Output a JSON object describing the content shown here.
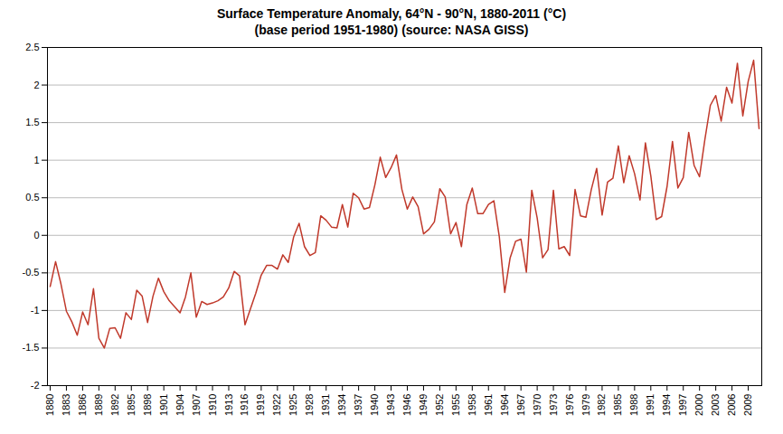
{
  "chart_data": {
    "type": "line",
    "title": "Surface Temperature Anomaly, 64°N - 90°N, 1880-2011 (°C)",
    "subtitle": "(base period 1951-1980) (source: NASA GISS)",
    "x": [
      1880,
      1881,
      1882,
      1883,
      1884,
      1885,
      1886,
      1887,
      1888,
      1889,
      1890,
      1891,
      1892,
      1893,
      1894,
      1895,
      1896,
      1897,
      1898,
      1899,
      1900,
      1901,
      1902,
      1903,
      1904,
      1905,
      1906,
      1907,
      1908,
      1909,
      1910,
      1911,
      1912,
      1913,
      1914,
      1915,
      1916,
      1917,
      1918,
      1919,
      1920,
      1921,
      1922,
      1923,
      1924,
      1925,
      1926,
      1927,
      1928,
      1929,
      1930,
      1931,
      1932,
      1933,
      1934,
      1935,
      1936,
      1937,
      1938,
      1939,
      1940,
      1941,
      1942,
      1943,
      1944,
      1945,
      1946,
      1947,
      1948,
      1949,
      1950,
      1951,
      1952,
      1953,
      1954,
      1955,
      1956,
      1957,
      1958,
      1959,
      1960,
      1961,
      1962,
      1963,
      1964,
      1965,
      1966,
      1967,
      1968,
      1969,
      1970,
      1971,
      1972,
      1973,
      1974,
      1975,
      1976,
      1977,
      1978,
      1979,
      1980,
      1981,
      1982,
      1983,
      1984,
      1985,
      1986,
      1987,
      1988,
      1989,
      1990,
      1991,
      1992,
      1993,
      1994,
      1995,
      1996,
      1997,
      1998,
      1999,
      2000,
      2001,
      2002,
      2003,
      2004,
      2005,
      2006,
      2007,
      2008,
      2009,
      2010,
      2011
    ],
    "values": [
      -0.68,
      -0.35,
      -0.65,
      -1.01,
      -1.15,
      -1.33,
      -1.02,
      -1.19,
      -0.71,
      -1.37,
      -1.5,
      -1.24,
      -1.23,
      -1.37,
      -1.03,
      -1.12,
      -0.73,
      -0.81,
      -1.16,
      -0.81,
      -0.57,
      -0.75,
      -0.87,
      -0.95,
      -1.03,
      -0.82,
      -0.5,
      -1.09,
      -0.88,
      -0.92,
      -0.9,
      -0.87,
      -0.82,
      -0.7,
      -0.48,
      -0.54,
      -1.19,
      -0.98,
      -0.77,
      -0.53,
      -0.4,
      -0.4,
      -0.45,
      -0.26,
      -0.36,
      -0.02,
      0.16,
      -0.15,
      -0.27,
      -0.23,
      0.26,
      0.2,
      0.11,
      0.1,
      0.41,
      0.11,
      0.56,
      0.5,
      0.35,
      0.37,
      0.67,
      1.04,
      0.77,
      0.9,
      1.07,
      0.61,
      0.35,
      0.51,
      0.38,
      0.02,
      0.08,
      0.18,
      0.62,
      0.51,
      0.02,
      0.17,
      -0.15,
      0.41,
      0.63,
      0.29,
      0.29,
      0.41,
      0.46,
      -0.02,
      -0.76,
      -0.3,
      -0.08,
      -0.05,
      -0.49,
      0.6,
      0.23,
      -0.3,
      -0.19,
      0.6,
      -0.18,
      -0.15,
      -0.27,
      0.61,
      0.26,
      0.24,
      0.61,
      0.89,
      0.27,
      0.71,
      0.76,
      1.19,
      0.7,
      1.06,
      0.82,
      0.47,
      1.23,
      0.79,
      0.21,
      0.25,
      0.65,
      1.25,
      0.63,
      0.77,
      1.37,
      0.93,
      0.78,
      1.28,
      1.73,
      1.86,
      1.52,
      1.97,
      1.76,
      2.29,
      1.59,
      2.05,
      2.33,
      1.42
    ],
    "color": "#c0392b",
    "xlim": [
      1879.5,
      2011.5
    ],
    "xticks": [
      1880,
      1883,
      1886,
      1889,
      1892,
      1895,
      1898,
      1901,
      1904,
      1907,
      1910,
      1913,
      1916,
      1919,
      1922,
      1925,
      1928,
      1931,
      1934,
      1937,
      1940,
      1943,
      1946,
      1949,
      1952,
      1955,
      1958,
      1961,
      1964,
      1967,
      1970,
      1973,
      1976,
      1979,
      1982,
      1985,
      1988,
      1991,
      1994,
      1997,
      2000,
      2003,
      2006,
      2009
    ],
    "ylim": [
      -2,
      2.5
    ],
    "yticks": [
      -2,
      -1.5,
      -1,
      -0.5,
      0,
      0.5,
      1,
      1.5,
      2,
      2.5
    ],
    "grid": true
  }
}
